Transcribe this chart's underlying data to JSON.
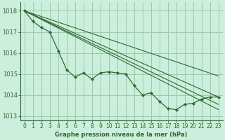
{
  "title": "Graphe pression niveau de la mer (hPa)",
  "background_color": "#cceedd",
  "grid_color": "#99ccaa",
  "line_color": "#2d6a2d",
  "ylim": [
    1012.8,
    1018.4
  ],
  "xlim": [
    -0.5,
    23.5
  ],
  "yticks": [
    1013,
    1014,
    1015,
    1016,
    1017,
    1018
  ],
  "xticks": [
    0,
    1,
    2,
    3,
    4,
    5,
    6,
    7,
    8,
    9,
    10,
    11,
    12,
    13,
    14,
    15,
    16,
    17,
    18,
    19,
    20,
    21,
    22,
    23
  ],
  "jagged": [
    1018.0,
    1017.5,
    1017.2,
    1017.0,
    1016.1,
    1015.2,
    1014.85,
    1015.05,
    1014.75,
    1015.05,
    1015.1,
    1015.05,
    1015.0,
    1014.45,
    1014.0,
    1014.1,
    1013.7,
    1013.35,
    1013.3,
    1013.55,
    1013.6,
    1013.8,
    1013.9,
    1013.9
  ],
  "straight_lines": [
    {
      "x0": 0,
      "y0": 1018.0,
      "x1": 23,
      "y1": 1014.9
    },
    {
      "x0": 0,
      "y0": 1018.0,
      "x1": 23,
      "y1": 1013.9
    },
    {
      "x0": 0,
      "y0": 1018.0,
      "x1": 23,
      "y1": 1013.55
    },
    {
      "x0": 0,
      "y0": 1018.0,
      "x1": 23,
      "y1": 1013.3
    }
  ],
  "marker_series": [
    1018.0,
    1017.5,
    1017.2,
    1017.0,
    1016.1,
    1015.2,
    1014.85,
    1015.05,
    1014.75,
    1015.05,
    1015.1,
    1015.05,
    1015.0,
    1014.45,
    1014.0,
    1014.1,
    1013.7,
    1013.35,
    1013.3,
    1013.55,
    1013.6,
    1013.8,
    1013.9,
    1013.9
  ],
  "title_fontsize": 6.0,
  "tick_fontsize": 5.5
}
